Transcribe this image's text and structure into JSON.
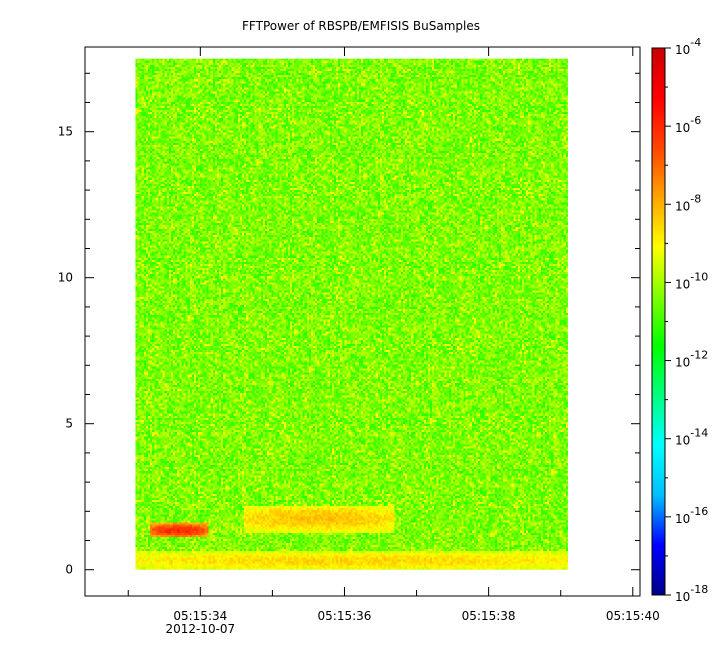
{
  "chart_data": {
    "type": "heatmap",
    "title": "FFTPower of RBSPB/EMFISIS  BuSamples",
    "xlabel": "",
    "ylabel": "",
    "x_range": [
      "05:15:32.4",
      "05:15:40.1"
    ],
    "y_range": [
      -0.9,
      17.9
    ],
    "data_extent": {
      "x": [
        "05:15:33.1",
        "05:15:39.1"
      ],
      "y": [
        0,
        17.5
      ]
    },
    "x_ticks": [
      {
        "label": "05:15:34",
        "sublabel": "2012-10-07",
        "value": "05:15:34"
      },
      {
        "label": "05:15:36",
        "sublabel": "",
        "value": "05:15:36"
      },
      {
        "label": "05:15:38",
        "sublabel": "",
        "value": "05:15:38"
      },
      {
        "label": "05:15:40",
        "sublabel": "",
        "value": "05:15:40"
      }
    ],
    "y_ticks": [
      {
        "label": "0",
        "value": 0
      },
      {
        "label": "5",
        "value": 5
      },
      {
        "label": "10",
        "value": 10
      },
      {
        "label": "15",
        "value": 15
      }
    ],
    "colorbar": {
      "scale": "log",
      "range": [
        1e-18,
        0.0001
      ],
      "tick_labels": [
        {
          "base": "10",
          "exp": "-4",
          "value": -4
        },
        {
          "base": "10",
          "exp": "-6",
          "value": -6
        },
        {
          "base": "10",
          "exp": "-8",
          "value": -8
        },
        {
          "base": "10",
          "exp": "-10",
          "value": -10
        },
        {
          "base": "10",
          "exp": "-12",
          "value": -12
        },
        {
          "base": "10",
          "exp": "-14",
          "value": -14
        },
        {
          "base": "10",
          "exp": "-16",
          "value": -16
        },
        {
          "base": "10",
          "exp": "-18",
          "value": -18
        }
      ],
      "colormap": [
        "#00008b",
        "#0000ff",
        "#00bfff",
        "#00ffff",
        "#00ff80",
        "#00ff00",
        "#7fff00",
        "#ffff00",
        "#ffa500",
        "#ff4500",
        "#ff0000",
        "#cc0000"
      ]
    },
    "background_level_log10": -10.5,
    "features": [
      {
        "name": "near-zero enhancement",
        "y": [
          0,
          0.6
        ],
        "level_log10": -8.5
      },
      {
        "name": "band",
        "x": [
          "05:15:34.6",
          "05:15:36.7"
        ],
        "y": [
          1.3,
          2.2
        ],
        "level_log10": -8.2
      },
      {
        "name": "burst",
        "x": [
          "05:15:33.3",
          "05:15:34.1"
        ],
        "y": [
          1.1,
          1.6
        ],
        "level_log10": -6
      }
    ]
  }
}
